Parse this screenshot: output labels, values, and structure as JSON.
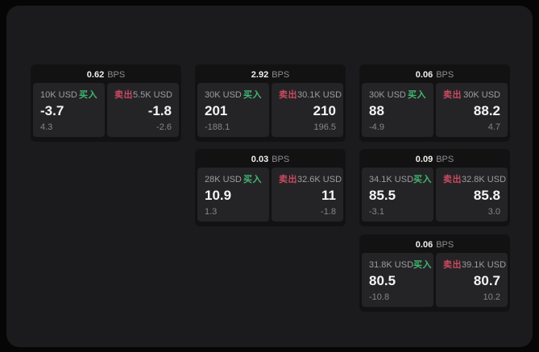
{
  "labels": {
    "bps_unit": "BPS",
    "buy": "买入",
    "sell": "卖出"
  },
  "colors": {
    "outer_background": "#060606",
    "panel_background": "#1b1b1d",
    "card_background": "#121213",
    "tile_background": "#242427",
    "buy_green": "#41b86f",
    "sell_red": "#c94a5f",
    "value_white": "#f4f4f5",
    "muted_gray": "#9d9da0"
  },
  "cards": [
    {
      "bps": "0.62",
      "buy": {
        "amount": "10K USD",
        "value": "-3.7",
        "delta": "4.3"
      },
      "sell": {
        "amount": "5.5K USD",
        "value": "-1.8",
        "delta": "-2.6"
      }
    },
    {
      "bps": "2.92",
      "buy": {
        "amount": "30K USD",
        "value": "201",
        "delta": "-188.1"
      },
      "sell": {
        "amount": "30.1K USD",
        "value": "210",
        "delta": "196.5"
      }
    },
    {
      "bps": "0.06",
      "buy": {
        "amount": "30K USD",
        "value": "88",
        "delta": "-4.9"
      },
      "sell": {
        "amount": "30K USD",
        "value": "88.2",
        "delta": "4.7"
      }
    },
    {
      "bps": "0.03",
      "buy": {
        "amount": "28K USD",
        "value": "10.9",
        "delta": "1.3"
      },
      "sell": {
        "amount": "32.6K USD",
        "value": "11",
        "delta": "-1.8"
      }
    },
    {
      "bps": "0.09",
      "buy": {
        "amount": "34.1K USD",
        "value": "85.5",
        "delta": "-3.1"
      },
      "sell": {
        "amount": "32.8K USD",
        "value": "85.8",
        "delta": "3.0"
      }
    },
    {
      "bps": "0.06",
      "buy": {
        "amount": "31.8K USD",
        "value": "80.5",
        "delta": "-10.8"
      },
      "sell": {
        "amount": "39.1K USD",
        "value": "80.7",
        "delta": "10.2"
      }
    }
  ]
}
